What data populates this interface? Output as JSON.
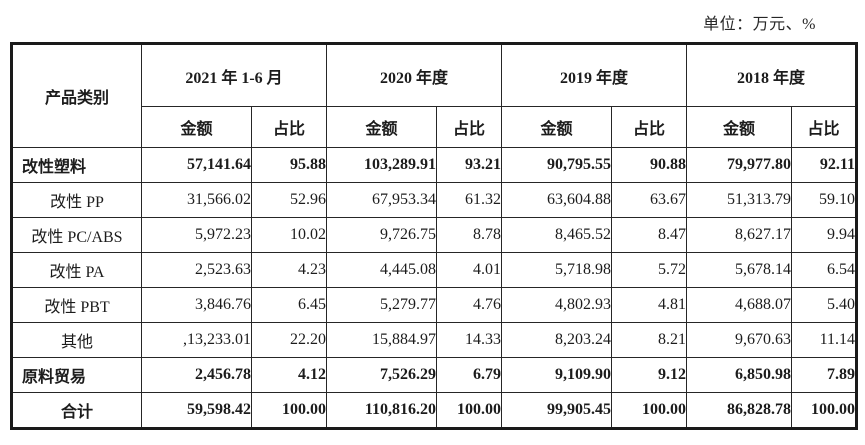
{
  "unit_note": "单位：万元、%",
  "colors": {
    "text": "#1c1c1c",
    "border": "#262626",
    "outer_border": "#1a1a1a",
    "background": "#ffffff"
  },
  "table": {
    "header": {
      "product": "产品类别",
      "periods": [
        "2021 年 1-6 月",
        "2020 年度",
        "2019 年度",
        "2018 年度"
      ],
      "amount_label": "金额",
      "ratio_label": "占比"
    },
    "rows": [
      {
        "label": "改性塑料",
        "bold": true,
        "align": "left",
        "cells": [
          "57,141.64",
          "95.88",
          "103,289.91",
          "93.21",
          "90,795.55",
          "90.88",
          "79,977.80",
          "92.11"
        ]
      },
      {
        "label": "改性 PP",
        "bold": false,
        "align": "center",
        "cells": [
          "31,566.02",
          "52.96",
          "67,953.34",
          "61.32",
          "63,604.88",
          "63.67",
          "51,313.79",
          "59.10"
        ]
      },
      {
        "label": "改性 PC/ABS",
        "bold": false,
        "align": "center",
        "cells": [
          "5,972.23",
          "10.02",
          "9,726.75",
          "8.78",
          "8,465.52",
          "8.47",
          "8,627.17",
          "9.94"
        ]
      },
      {
        "label": "改性 PA",
        "bold": false,
        "align": "center",
        "cells": [
          "2,523.63",
          "4.23",
          "4,445.08",
          "4.01",
          "5,718.98",
          "5.72",
          "5,678.14",
          "6.54"
        ]
      },
      {
        "label": "改性 PBT",
        "bold": false,
        "align": "center",
        "cells": [
          "3,846.76",
          "6.45",
          "5,279.77",
          "4.76",
          "4,802.93",
          "4.81",
          "4,688.07",
          "5.40"
        ]
      },
      {
        "label": "其他",
        "bold": false,
        "align": "center",
        "cells": [
          ",13,233.01",
          "22.20",
          "15,884.97",
          "14.33",
          "8,203.24",
          "8.21",
          "9,670.63",
          "11.14"
        ]
      },
      {
        "label": "原料贸易",
        "bold": true,
        "align": "left",
        "cells": [
          "2,456.78",
          "4.12",
          "7,526.29",
          "6.79",
          "9,109.90",
          "9.12",
          "6,850.98",
          "7.89"
        ]
      },
      {
        "label": "合计",
        "bold": true,
        "align": "center",
        "cells": [
          "59,598.42",
          "100.00",
          "110,816.20",
          "100.00",
          "99,905.45",
          "100.00",
          "86,828.78",
          "100.00"
        ]
      }
    ]
  }
}
